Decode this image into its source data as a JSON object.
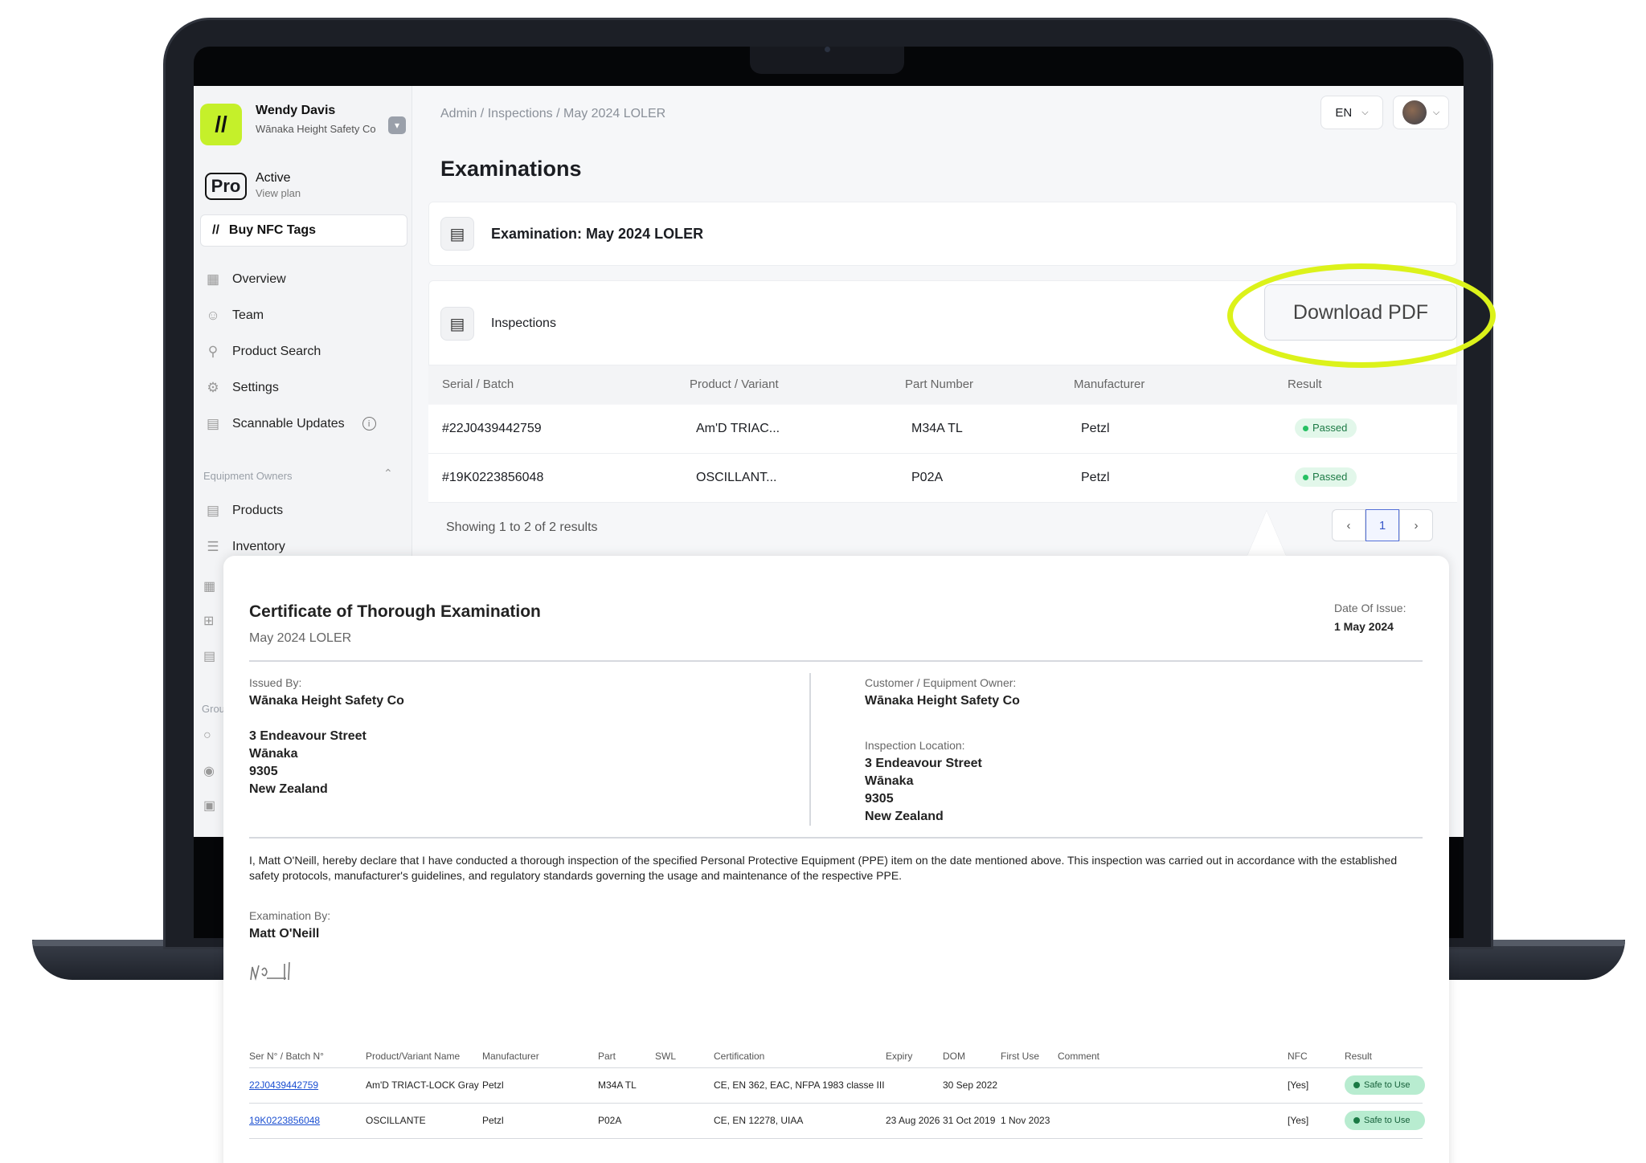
{
  "user": {
    "name": "Wendy Davis",
    "org": "Wānaka Height Safety Co"
  },
  "plan": {
    "badge": "Pro",
    "status": "Active",
    "link": "View plan"
  },
  "sidebar": {
    "nfc_button": "Buy NFC Tags",
    "items": [
      {
        "label": "Overview",
        "icon": "grid-icon"
      },
      {
        "label": "Team",
        "icon": "users-icon"
      },
      {
        "label": "Product Search",
        "icon": "search-icon"
      },
      {
        "label": "Settings",
        "icon": "gear-icon"
      },
      {
        "label": "Scannable Updates",
        "icon": "document-icon"
      }
    ],
    "section_label": "Equipment Owners",
    "section_items": [
      {
        "label": "Products",
        "icon": "document-icon"
      },
      {
        "label": "Inventory",
        "icon": "list-icon"
      }
    ],
    "group_label_fragment": "Grou"
  },
  "header": {
    "breadcrumb": [
      "Admin",
      "Inspections",
      "May 2024 LOLER"
    ],
    "language": "EN"
  },
  "page": {
    "title": "Examinations",
    "exam_card_title": "Examination: May 2024 LOLER",
    "inspections_card_title": "Inspections",
    "download_button": "Download PDF"
  },
  "inspections_table": {
    "columns": [
      "Serial / Batch",
      "Product / Variant",
      "Part Number",
      "Manufacturer",
      "Result"
    ],
    "rows": [
      {
        "serial": "#22J0439442759",
        "product": "Am'D TRIAC...",
        "part": "M34A TL",
        "manufacturer": "Petzl",
        "result": "Passed"
      },
      {
        "serial": "#19K0223856048",
        "product": "OSCILLANT...",
        "part": "P02A",
        "manufacturer": "Petzl",
        "result": "Passed"
      }
    ],
    "results_text": "Showing 1 to 2 of 2 results",
    "current_page": "1"
  },
  "certificate": {
    "title": "Certificate of Thorough Examination",
    "subtitle": "May 2024 LOLER",
    "date_label": "Date Of Issue:",
    "date_value": "1 May 2024",
    "issued_by_label": "Issued By:",
    "issued_by": "Wānaka Height Safety Co",
    "issuer_address": [
      "3 Endeavour Street",
      "Wānaka",
      "9305",
      "New Zealand"
    ],
    "customer_label": "Customer / Equipment Owner:",
    "customer": "Wānaka Height Safety Co",
    "location_label": "Inspection Location:",
    "location_address": [
      "3 Endeavour Street",
      "Wānaka",
      "9305",
      "New Zealand"
    ],
    "declaration": "I, Matt O'Neill, hereby declare that I have conducted a thorough inspection of the specified Personal Protective Equipment (PPE) item on the date mentioned above. This inspection was carried out in accordance with the established safety protocols, manufacturer's guidelines, and regulatory standards governing the usage and maintenance of the respective PPE.",
    "examined_by_label": "Examination By:",
    "examined_by": "Matt O'Neill",
    "table": {
      "columns": [
        "Ser N° / Batch N°",
        "Product/Variant Name",
        "Manufacturer",
        "Part",
        "SWL",
        "Certification",
        "Expiry",
        "DOM",
        "First Use",
        "Comment",
        "NFC",
        "Result"
      ],
      "rows": [
        {
          "serial": "22J0439442759",
          "product": "Am'D TRIACT-LOCK Gray",
          "manufacturer": "Petzl",
          "part": "M34A TL",
          "swl": "",
          "certification": "CE, EN 362, EAC, NFPA 1983 classe III",
          "expiry": "",
          "dom": "30 Sep 2022",
          "first_use": "",
          "comment": "",
          "nfc": "[Yes]",
          "result": "Safe to Use"
        },
        {
          "serial": "19K0223856048",
          "product": "OSCILLANTE",
          "manufacturer": "Petzl",
          "part": "P02A",
          "swl": "",
          "certification": "CE, EN 12278, UIAA",
          "expiry": "23 Aug 2026",
          "dom": "31 Oct 2019",
          "first_use": "1 Nov 2023",
          "comment": "",
          "nfc": "[Yes]",
          "result": "Safe to Use"
        }
      ]
    }
  },
  "colors": {
    "accent": "#c5f02a",
    "highlight": "#dcf21a",
    "passed": "#27c063",
    "link": "#1b4fd1"
  }
}
